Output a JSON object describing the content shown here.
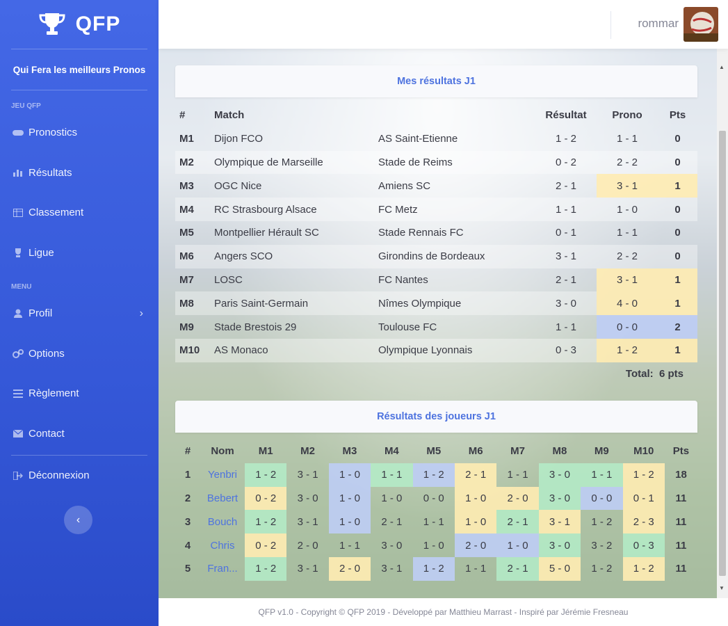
{
  "brand": {
    "name": "QFP",
    "tagline": "Qui Fera les meilleurs Pronos"
  },
  "sidebar": {
    "sections": [
      {
        "heading": "JEU QFP",
        "items": [
          {
            "label": "Pronostics",
            "icon": "gamepad-icon"
          },
          {
            "label": "Résultats",
            "icon": "bar-chart-icon"
          },
          {
            "label": "Classement",
            "icon": "table-icon"
          },
          {
            "label": "Ligue",
            "icon": "trophy-icon"
          }
        ]
      },
      {
        "heading": "MENU",
        "items": [
          {
            "label": "Profil",
            "icon": "user-icon"
          },
          {
            "label": "Options",
            "icon": "cogs-icon"
          },
          {
            "label": "Règlement",
            "icon": "list-icon"
          },
          {
            "label": "Contact",
            "icon": "envelope-icon"
          }
        ]
      }
    ],
    "logout": {
      "label": "Déconnexion",
      "icon": "sign-out-icon"
    }
  },
  "topbar": {
    "username": "rommar"
  },
  "results": {
    "title": "Mes résultats J1",
    "headers": {
      "num": "#",
      "match": "Match",
      "result": "Résultat",
      "prono": "Prono",
      "pts": "Pts"
    },
    "rows": [
      {
        "id": "M1",
        "home": "Dijon FCO",
        "away": "AS Saint-Etienne",
        "result": "1 - 2",
        "prono": "1 - 1",
        "pts": "0",
        "hl": ""
      },
      {
        "id": "M2",
        "home": "Olympique de Marseille",
        "away": "Stade de Reims",
        "result": "0 - 2",
        "prono": "2 - 2",
        "pts": "0",
        "hl": ""
      },
      {
        "id": "M3",
        "home": "OGC Nice",
        "away": "Amiens SC",
        "result": "2 - 1",
        "prono": "3 - 1",
        "pts": "1",
        "hl": "yellow"
      },
      {
        "id": "M4",
        "home": "RC Strasbourg Alsace",
        "away": "FC Metz",
        "result": "1 - 1",
        "prono": "1 - 0",
        "pts": "0",
        "hl": ""
      },
      {
        "id": "M5",
        "home": "Montpellier Hérault SC",
        "away": "Stade Rennais FC",
        "result": "0 - 1",
        "prono": "1 - 1",
        "pts": "0",
        "hl": ""
      },
      {
        "id": "M6",
        "home": "Angers SCO",
        "away": "Girondins de Bordeaux",
        "result": "3 - 1",
        "prono": "2 - 2",
        "pts": "0",
        "hl": ""
      },
      {
        "id": "M7",
        "home": "LOSC",
        "away": "FC Nantes",
        "result": "2 - 1",
        "prono": "3 - 1",
        "pts": "1",
        "hl": "yellow"
      },
      {
        "id": "M8",
        "home": "Paris Saint-Germain",
        "away": "Nîmes Olympique",
        "result": "3 - 0",
        "prono": "4 - 0",
        "pts": "1",
        "hl": "yellow"
      },
      {
        "id": "M9",
        "home": "Stade Brestois 29",
        "away": "Toulouse FC",
        "result": "1 - 1",
        "prono": "0 - 0",
        "pts": "2",
        "hl": "blue"
      },
      {
        "id": "M10",
        "home": "AS Monaco",
        "away": "Olympique Lyonnais",
        "result": "0 - 3",
        "prono": "1 - 2",
        "pts": "1",
        "hl": "yellow"
      }
    ],
    "total_label": "Total:",
    "total_value": "6 pts"
  },
  "players": {
    "title": "Résultats des joueurs J1",
    "headers": [
      "#",
      "Nom",
      "M1",
      "M2",
      "M3",
      "M4",
      "M5",
      "M6",
      "M7",
      "M8",
      "M9",
      "M10",
      "Pts"
    ],
    "rows": [
      {
        "rank": "1",
        "name": "Yenbri",
        "pts": "18",
        "cells": [
          {
            "v": "1 - 2",
            "c": "green"
          },
          {
            "v": "3 - 1",
            "c": ""
          },
          {
            "v": "1 - 0",
            "c": "blue"
          },
          {
            "v": "1 - 1",
            "c": "green"
          },
          {
            "v": "1 - 2",
            "c": "blue"
          },
          {
            "v": "2 - 1",
            "c": "yellow"
          },
          {
            "v": "1 - 1",
            "c": ""
          },
          {
            "v": "3 - 0",
            "c": "green"
          },
          {
            "v": "1 - 1",
            "c": "green"
          },
          {
            "v": "1 - 2",
            "c": "yellow"
          }
        ]
      },
      {
        "rank": "2",
        "name": "Bebert",
        "pts": "11",
        "cells": [
          {
            "v": "0 - 2",
            "c": "yellow"
          },
          {
            "v": "3 - 0",
            "c": ""
          },
          {
            "v": "1 - 0",
            "c": "blue"
          },
          {
            "v": "1 - 0",
            "c": ""
          },
          {
            "v": "0 - 0",
            "c": ""
          },
          {
            "v": "1 - 0",
            "c": "yellow"
          },
          {
            "v": "2 - 0",
            "c": "yellow"
          },
          {
            "v": "3 - 0",
            "c": "green"
          },
          {
            "v": "0 - 0",
            "c": "blue"
          },
          {
            "v": "0 - 1",
            "c": "yellow"
          }
        ]
      },
      {
        "rank": "3",
        "name": "Bouch",
        "pts": "11",
        "cells": [
          {
            "v": "1 - 2",
            "c": "green"
          },
          {
            "v": "3 - 1",
            "c": ""
          },
          {
            "v": "1 - 0",
            "c": "blue"
          },
          {
            "v": "2 - 1",
            "c": ""
          },
          {
            "v": "1 - 1",
            "c": ""
          },
          {
            "v": "1 - 0",
            "c": "yellow"
          },
          {
            "v": "2 - 1",
            "c": "green"
          },
          {
            "v": "3 - 1",
            "c": "yellow"
          },
          {
            "v": "1 - 2",
            "c": ""
          },
          {
            "v": "2 - 3",
            "c": "yellow"
          }
        ]
      },
      {
        "rank": "4",
        "name": "Chris",
        "pts": "11",
        "cells": [
          {
            "v": "0 - 2",
            "c": "yellow"
          },
          {
            "v": "2 - 0",
            "c": ""
          },
          {
            "v": "1 - 1",
            "c": ""
          },
          {
            "v": "3 - 0",
            "c": ""
          },
          {
            "v": "1 - 0",
            "c": ""
          },
          {
            "v": "2 - 0",
            "c": "blue"
          },
          {
            "v": "1 - 0",
            "c": "blue"
          },
          {
            "v": "3 - 0",
            "c": "green"
          },
          {
            "v": "3 - 2",
            "c": ""
          },
          {
            "v": "0 - 3",
            "c": "green"
          }
        ]
      },
      {
        "rank": "5",
        "name": "Fran...",
        "pts": "11",
        "cells": [
          {
            "v": "1 - 2",
            "c": "green"
          },
          {
            "v": "3 - 1",
            "c": ""
          },
          {
            "v": "2 - 0",
            "c": "yellow"
          },
          {
            "v": "3 - 1",
            "c": ""
          },
          {
            "v": "1 - 2",
            "c": "blue"
          },
          {
            "v": "1 - 1",
            "c": ""
          },
          {
            "v": "2 - 1",
            "c": "green"
          },
          {
            "v": "5 - 0",
            "c": "yellow"
          },
          {
            "v": "1 - 2",
            "c": ""
          },
          {
            "v": "1 - 2",
            "c": "yellow"
          }
        ]
      }
    ]
  },
  "footer": {
    "text": "QFP v1.0 - Copyright © QFP 2019 - Développé par Matthieu Marrast - Inspiré par Jérémie Fresneau"
  },
  "colors": {
    "primary": "#4e73df",
    "sidebar_start": "#4468e6",
    "sidebar_end": "#2a4bc9",
    "highlight_yellow": "#ffecb3",
    "highlight_blue": "#becdf5",
    "highlight_green": "#b4ecc8"
  }
}
